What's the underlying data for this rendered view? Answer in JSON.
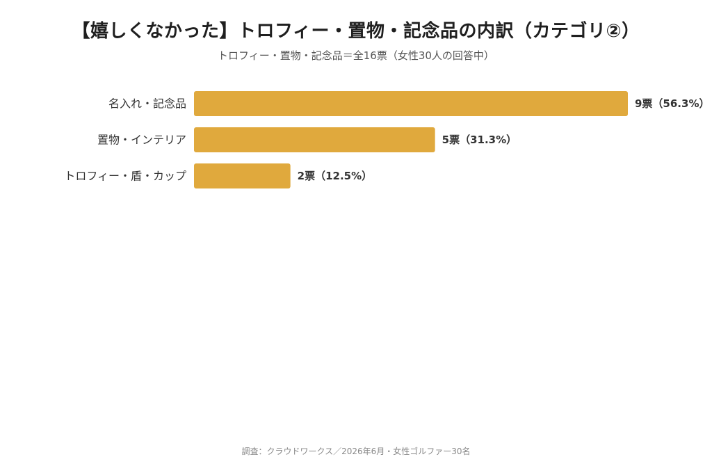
{
  "chart_data": {
    "type": "bar",
    "orientation": "horizontal",
    "title": "【嬉しくなかった】トロフィー・置物・記念品の内訳（カテゴリ②）",
    "subtitle": "トロフィー・置物・記念品＝全16票（女性30人の回答中）",
    "source": "調査：クラウドワークス／2026年6月・女性ゴルファー30名",
    "categories": [
      "名入れ・記念品",
      "置物・インテリア",
      "トロフィー・盾・カップ"
    ],
    "values": [
      9,
      5,
      2
    ],
    "value_labels": [
      "9票（56.3%）",
      "5票（31.3%）",
      "2票（12.5%）"
    ],
    "total": 16,
    "xlim": [
      0,
      9
    ],
    "grid": false,
    "legend": "none",
    "colors": {
      "bar": "#E0A93D",
      "label": "#333333",
      "value_label": "#333333"
    }
  }
}
